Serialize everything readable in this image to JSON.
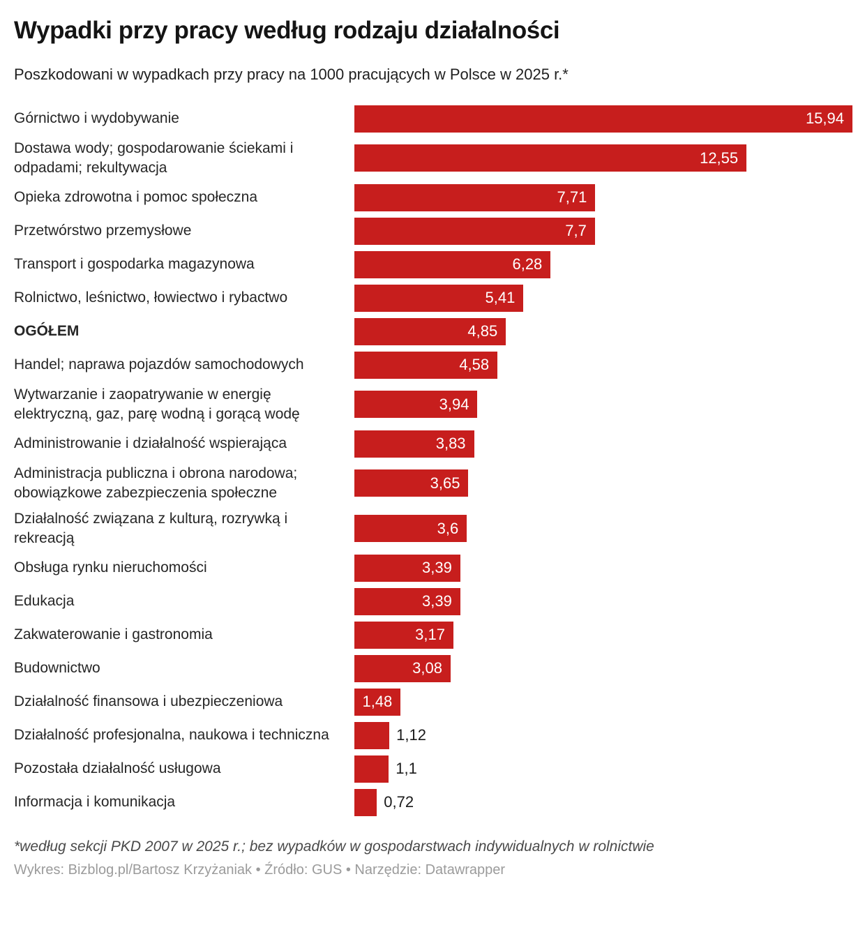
{
  "page": {
    "title": "Wypadki przy pracy według rodzaju działalności",
    "subtitle": "Poszkodowani w wypadkach przy pracy na 1000 pracujących w Polsce w 2025 r.*",
    "footnote": "*według sekcji PKD 2007 w 2025 r.; bez wypadków w gospodarstwach indywidualnych w rolnictwie",
    "byline": "Wykres: Bizblog.pl/Bartosz Krzyżaniak • Źródło: GUS • Narzędzie: Datawrapper"
  },
  "colors": {
    "bar": "#c71e1d",
    "value_inside": "#ffffff",
    "value_outside": "#1a1a1a"
  },
  "chart_data": {
    "type": "bar",
    "orientation": "horizontal",
    "title": "Wypadki przy pracy według rodzaju działalności",
    "subtitle": "Poszkodowani w wypadkach przy pracy na 1000 pracujących w Polsce w 2025 r.*",
    "xlabel": "",
    "ylabel": "",
    "xlim": [
      0,
      15.94
    ],
    "grid": false,
    "legend": false,
    "categories": [
      "Górnictwo i wydobywanie",
      "Dostawa wody; gospodarowanie ściekami i odpadami; rekultywacja",
      "Opieka zdrowotna i pomoc społeczna",
      "Przetwórstwo przemysłowe",
      "Transport i gospodarka magazynowa",
      "Rolnictwo, leśnictwo, łowiectwo i rybactwo",
      "OGÓŁEM",
      "Handel; naprawa pojazdów samochodowych",
      "Wytwarzanie i zaopatrywanie w energię elektryczną, gaz, parę wodną i gorącą wodę",
      "Administrowanie i działalność wspierająca",
      "Administracja publiczna i obrona narodowa; obowiązkowe zabezpieczenia społeczne",
      "Działalność związana z kulturą, rozrywką i rekreacją",
      "Obsługa rynku nieruchomości",
      "Edukacja",
      "Zakwaterowanie i gastronomia",
      "Budownictwo",
      "Działalność finansowa i ubezpieczeniowa",
      "Działalność profesjonalna, naukowa i techniczna",
      "Pozostała działalność usługowa",
      "Informacja i komunikacja"
    ],
    "values": [
      15.94,
      12.55,
      7.71,
      7.7,
      6.28,
      5.41,
      4.85,
      4.58,
      3.94,
      3.83,
      3.65,
      3.6,
      3.39,
      3.39,
      3.17,
      3.08,
      1.48,
      1.12,
      1.1,
      0.72
    ],
    "value_labels": [
      "15,94",
      "12,55",
      "7,71",
      "7,7",
      "6,28",
      "5,41",
      "4,85",
      "4,58",
      "3,94",
      "3,83",
      "3,65",
      "3,6",
      "3,39",
      "3,39",
      "3,17",
      "3,08",
      "1,48",
      "1,12",
      "1,1",
      "0,72"
    ],
    "bold_categories": [
      "OGÓŁEM"
    ]
  }
}
